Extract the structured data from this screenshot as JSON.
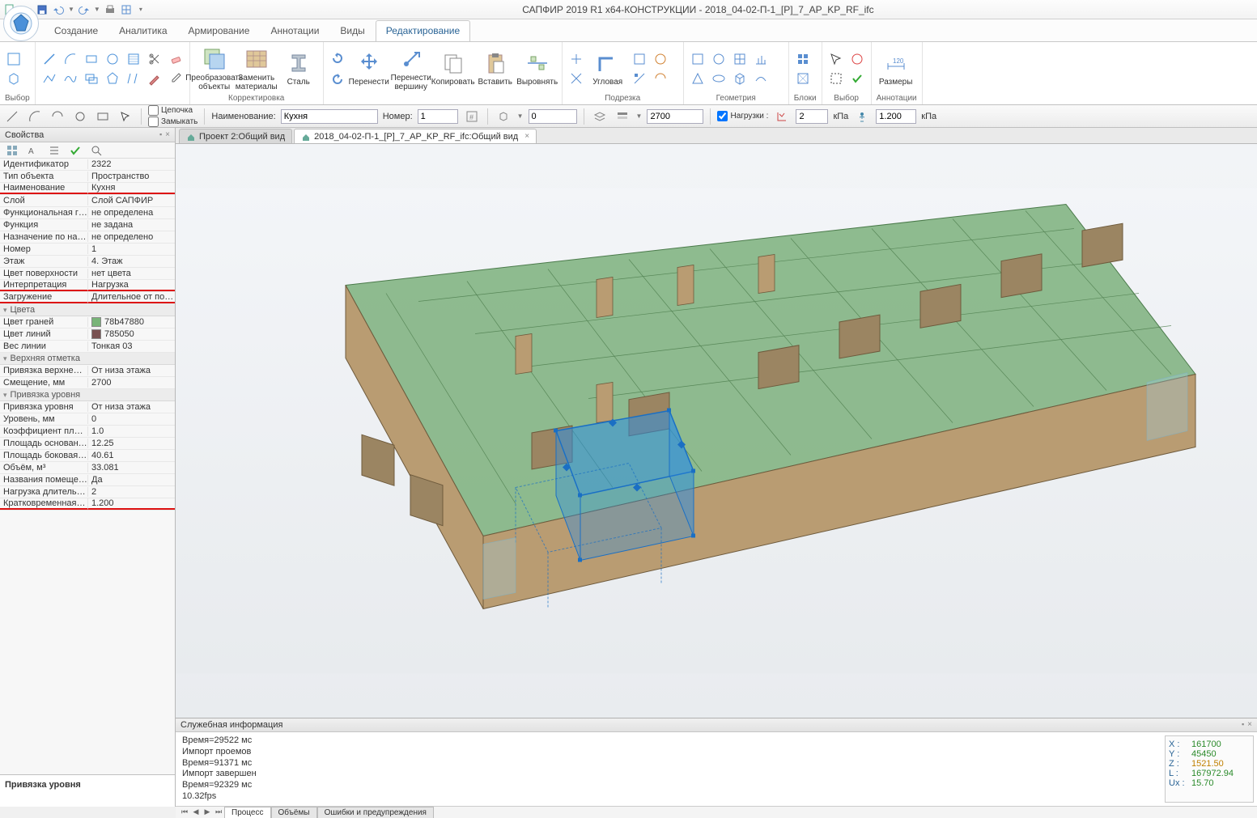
{
  "app": {
    "title": "САПФИР 2019 R1 x64-КОНСТРУКЦИИ - 2018_04-02-П-1_[P]_7_AP_KP_RF_ifc"
  },
  "tabs": {
    "items": [
      "Создание",
      "Аналитика",
      "Армирование",
      "Аннотации",
      "Виды",
      "Редактирование"
    ],
    "active": 5
  },
  "ribbon": {
    "groups": [
      {
        "label": "Выбор"
      },
      {
        "label": "Корректировка",
        "big": [
          {
            "label": "Преобразовать\nобъекты"
          },
          {
            "label": "Заменить\nматериалы"
          },
          {
            "label": "Сталь"
          }
        ]
      },
      {
        "label": "",
        "big": [
          {
            "label": "Перенести"
          },
          {
            "label": "Перенести\nвершину"
          },
          {
            "label": "Копировать"
          },
          {
            "label": "Вставить"
          },
          {
            "label": "Выровнять"
          }
        ]
      },
      {
        "label": "Подрезка",
        "big": [
          {
            "label": "Угловая"
          }
        ]
      },
      {
        "label": "Геометрия"
      },
      {
        "label": "Блоки"
      },
      {
        "label": "Выбор"
      },
      {
        "label": "Аннотации",
        "big": [
          {
            "label": "Размеры"
          }
        ]
      }
    ]
  },
  "toolbar2": {
    "chain": "Цепочка",
    "close": "Замыкать",
    "name_label": "Наименование:",
    "name_value": "Кухня",
    "num_label": "Номер:",
    "num_value": "1",
    "height_value": "0",
    "val_2700": "2700",
    "loads_label": "Нагрузки :",
    "load_long": "2",
    "load_long_unit": "кПа",
    "load_short": "1.200",
    "load_short_unit": "кПа"
  },
  "doc_tabs": [
    {
      "label": "Проект 2:Общий вид",
      "active": false
    },
    {
      "label": "2018_04-02-П-1_[P]_7_AP_KP_RF_ifc:Общий вид",
      "active": true
    }
  ],
  "props_panel": {
    "title": "Свойства",
    "footer": "Привязка уровня",
    "rows": [
      {
        "k": "Идентификатор",
        "v": "2322"
      },
      {
        "k": "Тип объекта",
        "v": "Пространство"
      },
      {
        "k": "Наименование",
        "v": "Кухня",
        "u": true
      },
      {
        "k": "Слой",
        "v": "Слой САПФИР"
      },
      {
        "k": "Функциональная гр…",
        "v": "не определена"
      },
      {
        "k": "Функция",
        "v": "не задана"
      },
      {
        "k": "Назначение по нагр…",
        "v": "не определено"
      },
      {
        "k": "Номер",
        "v": "1"
      },
      {
        "k": "Этаж",
        "v": "4. Этаж"
      },
      {
        "k": "Цвет поверхности",
        "v": "нет цвета"
      },
      {
        "k": "Интерпретация",
        "v": "Нагрузка",
        "u": true
      },
      {
        "k": "Загружение",
        "v": "Длительное от поме…",
        "u": true
      }
    ],
    "section_colors": "Цвета",
    "face_color": {
      "k": "Цвет граней",
      "v": "78b47880",
      "hex": "#78b478"
    },
    "line_color": {
      "k": "Цвет линий",
      "v": "785050",
      "hex": "#785050"
    },
    "line_weight": {
      "k": "Вес линии",
      "v": "Тонкая 03"
    },
    "section_top": "Верхняя отметка",
    "top_rows": [
      {
        "k": "Привязка верхне…",
        "v": "От низа этажа"
      },
      {
        "k": "Смещение, мм",
        "v": "2700"
      }
    ],
    "section_level": "Привязка уровня",
    "level_rows": [
      {
        "k": "Привязка уровня",
        "v": "От низа этажа"
      },
      {
        "k": "Уровень, мм",
        "v": "0"
      }
    ],
    "bottom_rows": [
      {
        "k": "Коэффициент площ…",
        "v": "1.0"
      },
      {
        "k": "Площадь основания…",
        "v": "12.25"
      },
      {
        "k": "Площадь боковая, м²",
        "v": "40.61"
      },
      {
        "k": "Объём, м³",
        "v": "33.081"
      },
      {
        "k": "Названия помещений",
        "v": "Да"
      },
      {
        "k": "Нагрузка длительна…",
        "v": "2"
      },
      {
        "k": "Кратковременная н…",
        "v": "1.200",
        "u": true
      }
    ]
  },
  "info": {
    "title": "Служебная информация",
    "log": [
      "Время=29522 мс",
      "Импорт проемов",
      "Время=91371 мс",
      "Импорт завершен",
      "Время=92329 мс",
      "  10.32fps"
    ],
    "tabs": [
      "Процесс",
      "Объёмы",
      "Ошибки и предупреждения"
    ],
    "coords": {
      "X": "161700",
      "Y": "45450",
      "Z": "1521.50",
      "L": "167972.94",
      "Ux": "15.70"
    }
  },
  "viewport": {
    "bg_top": "#f3f5f8",
    "bg_bot": "#e8ebee",
    "wall_fill": "#b99c72",
    "wall_stroke": "#6e5a3c",
    "floor_fill": "#7db07d",
    "floor_stroke": "#4a7a4a",
    "sel_fill": "#2f8fe0",
    "sel_fill_op": 0.55,
    "sel_stroke": "#1a6fc4",
    "glass": "#9fcad9",
    "glass_op": 0.45,
    "handle": "#1a6fc4"
  }
}
